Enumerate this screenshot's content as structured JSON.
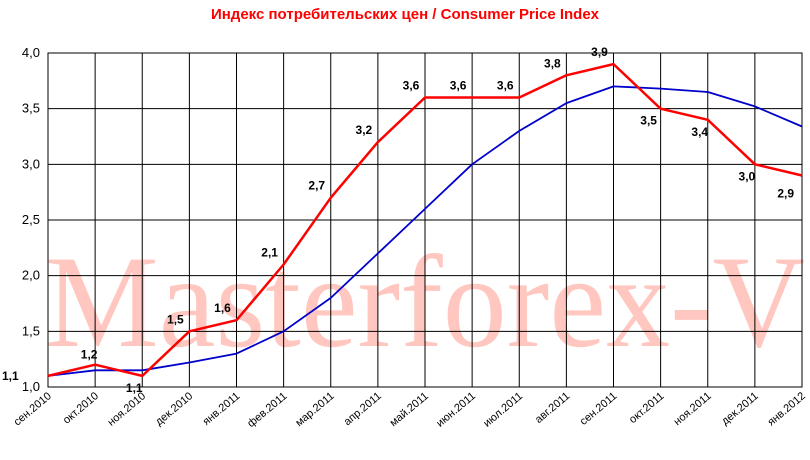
{
  "chart_data": {
    "type": "line",
    "title": "Индекс потребительских цен / Consumer Price Index",
    "watermark": "Masterforex-V",
    "categories": [
      "сен.2010",
      "окт.2010",
      "ноя.2010",
      "дек.2010",
      "янв.2011",
      "фев.2011",
      "мар.2011",
      "апр.2011",
      "май.2011",
      "июн.2011",
      "июл.2011",
      "авг.2011",
      "сен.2011",
      "окт.2011",
      "ноя.2011",
      "дек.2011",
      "янв.2012"
    ],
    "ylim": [
      1.0,
      4.0
    ],
    "yticks": [
      "1,0",
      "1,5",
      "2,0",
      "2,5",
      "3,0",
      "3,5",
      "4,0"
    ],
    "grid": true,
    "series": [
      {
        "color": "#ff0000",
        "values": [
          1.1,
          1.2,
          1.1,
          1.5,
          1.6,
          2.1,
          2.7,
          3.2,
          3.6,
          3.6,
          3.6,
          3.8,
          3.9,
          3.5,
          3.4,
          3.0,
          2.9
        ],
        "labels": [
          "1,1",
          "1,2",
          "1,1",
          "1,5",
          "1,6",
          "2,1",
          "2,7",
          "3,2",
          "3,6",
          "3,6",
          "3,6",
          "3,8",
          "3,9",
          "3,5",
          "3,4",
          "3,0",
          "2,9"
        ]
      },
      {
        "color": "#0000cc",
        "values": [
          1.1,
          1.15,
          1.15,
          1.22,
          1.3,
          1.5,
          1.8,
          2.2,
          2.6,
          3.0,
          3.3,
          3.55,
          3.7,
          3.68,
          3.65,
          3.52,
          3.34
        ]
      }
    ]
  }
}
